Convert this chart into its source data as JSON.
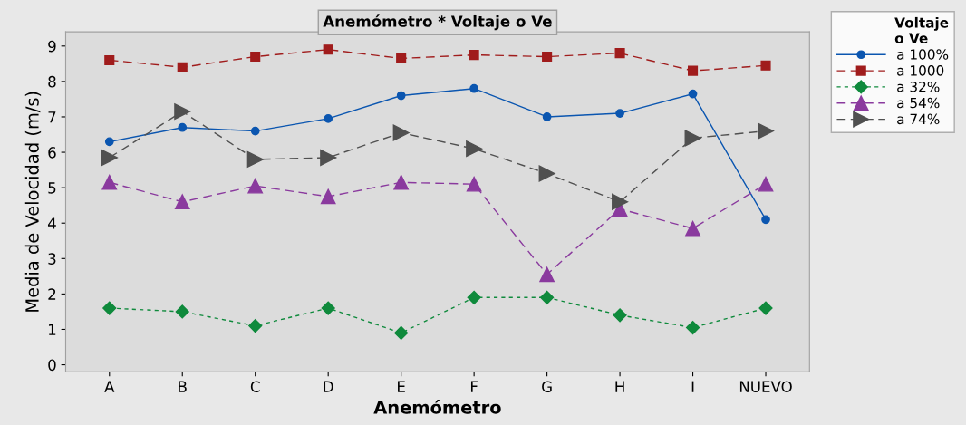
{
  "chart_data": {
    "type": "line",
    "title": "Anemómetro * Voltaje o Ve",
    "xlabel": "Anemómetro",
    "ylabel": "Media de Velocidad (m/s)",
    "legend_title": "Voltaje\no Ve",
    "legend": "right",
    "grid": false,
    "categories": [
      "A",
      "B",
      "C",
      "D",
      "E",
      "F",
      "G",
      "H",
      "I",
      "NUEVO"
    ],
    "ylim": [
      -0.2,
      9.4
    ],
    "yticks": [
      0,
      1,
      2,
      3,
      4,
      5,
      6,
      7,
      8,
      9
    ],
    "series": [
      {
        "name": "a 100%",
        "color": "#0b56b0",
        "marker": "circle",
        "line_style": "solid",
        "values": [
          6.3,
          6.7,
          6.6,
          6.95,
          7.6,
          7.8,
          7.0,
          7.1,
          7.65,
          4.1
        ]
      },
      {
        "name": "a 1000",
        "color": "#a01c1c",
        "marker": "square",
        "line_style": "dashed",
        "values": [
          8.6,
          8.4,
          8.7,
          8.9,
          8.65,
          8.75,
          8.7,
          8.8,
          8.3,
          8.45
        ]
      },
      {
        "name": "a 32%",
        "color": "#0f8a3c",
        "marker": "diamond",
        "line_style": "dotted",
        "values": [
          1.6,
          1.5,
          1.1,
          1.6,
          0.9,
          1.9,
          1.9,
          1.4,
          1.05,
          1.6
        ]
      },
      {
        "name": "a 54%",
        "color": "#8a3a9e",
        "marker": "triangle",
        "line_style": "dashed",
        "values": [
          5.15,
          4.6,
          5.05,
          4.75,
          5.15,
          5.1,
          2.55,
          4.4,
          3.85,
          5.1
        ]
      },
      {
        "name": "a 74%",
        "color": "#505050",
        "marker": "triangle-right",
        "line_style": "dashed",
        "values": [
          5.85,
          7.15,
          5.8,
          5.85,
          6.55,
          6.1,
          5.4,
          4.6,
          6.4,
          6.6
        ]
      }
    ]
  }
}
